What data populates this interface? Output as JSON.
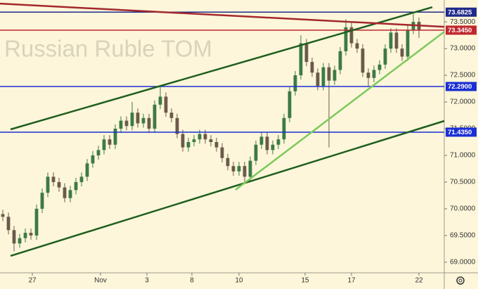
{
  "chart_data": {
    "type": "candlestick",
    "subtitle": "Russian Ruble TOM",
    "x": [
      0,
      1,
      2,
      3,
      4,
      5,
      6,
      7,
      8,
      9,
      10,
      11,
      12,
      13,
      14,
      15,
      16,
      17,
      18,
      19,
      20,
      21,
      22,
      23,
      24,
      25,
      26,
      27,
      28,
      29,
      30,
      31,
      32,
      33,
      34,
      35,
      36,
      37,
      38,
      39,
      40,
      41,
      42,
      43,
      44,
      45,
      46,
      47,
      48,
      49,
      50,
      51,
      52,
      53,
      54,
      55,
      56,
      57,
      58,
      59,
      60,
      61,
      62,
      63,
      64,
      65,
      66,
      67,
      68,
      69,
      70,
      71,
      72,
      73,
      74
    ],
    "open": [
      69.9,
      69.85,
      69.6,
      69.35,
      69.45,
      69.55,
      69.5,
      70.0,
      70.3,
      70.6,
      70.5,
      70.4,
      70.2,
      70.35,
      70.5,
      70.6,
      70.85,
      71.0,
      71.1,
      71.3,
      71.2,
      71.5,
      71.65,
      71.55,
      71.8,
      71.6,
      71.7,
      71.5,
      71.95,
      72.1,
      71.8,
      71.7,
      71.4,
      71.15,
      71.25,
      71.3,
      71.4,
      71.3,
      71.25,
      71.15,
      70.95,
      70.8,
      70.7,
      70.8,
      70.6,
      70.9,
      71.2,
      71.35,
      71.1,
      71.2,
      71.3,
      71.7,
      72.2,
      72.5,
      73.1,
      72.75,
      72.55,
      72.3,
      72.65,
      72.4,
      72.6,
      72.95,
      73.4,
      73.1,
      73.0,
      72.55,
      72.45,
      72.6,
      72.7,
      73.0,
      73.3,
      73.0,
      72.85,
      73.35,
      73.5
    ],
    "high": [
      69.98,
      69.93,
      69.68,
      69.53,
      69.63,
      69.63,
      70.08,
      70.38,
      70.68,
      70.68,
      70.58,
      70.48,
      70.43,
      70.58,
      70.68,
      70.93,
      71.08,
      71.18,
      71.38,
      71.38,
      71.58,
      71.73,
      71.73,
      72.0,
      71.88,
      71.78,
      71.78,
      72.03,
      72.3,
      72.18,
      71.88,
      71.78,
      71.48,
      71.33,
      71.38,
      71.48,
      71.48,
      71.38,
      71.33,
      71.23,
      71.03,
      70.88,
      70.88,
      70.88,
      70.98,
      71.28,
      71.43,
      71.43,
      71.28,
      71.38,
      71.78,
      72.28,
      72.58,
      73.25,
      73.18,
      72.83,
      72.63,
      72.73,
      72.73,
      72.68,
      73.03,
      73.55,
      73.48,
      73.18,
      73.08,
      72.63,
      72.68,
      72.78,
      73.08,
      73.38,
      73.38,
      73.08,
      73.43,
      73.65,
      73.58
    ],
    "low": [
      69.77,
      69.52,
      69.2,
      69.27,
      69.37,
      69.42,
      69.42,
      69.92,
      70.22,
      70.42,
      70.32,
      70.12,
      70.12,
      70.27,
      70.42,
      70.52,
      70.77,
      70.92,
      71.02,
      71.12,
      71.12,
      71.42,
      71.47,
      71.47,
      71.52,
      71.52,
      71.42,
      71.42,
      71.87,
      71.72,
      71.62,
      71.32,
      71.07,
      71.07,
      71.17,
      71.22,
      71.22,
      71.17,
      71.07,
      70.87,
      70.72,
      70.62,
      70.62,
      70.5,
      70.52,
      70.82,
      71.12,
      71.02,
      71.02,
      71.12,
      71.22,
      71.62,
      72.12,
      72.42,
      72.67,
      72.47,
      72.22,
      72.22,
      71.15,
      72.32,
      72.52,
      72.87,
      73.02,
      72.92,
      72.47,
      72.3,
      72.37,
      72.52,
      72.62,
      72.92,
      72.92,
      72.77,
      72.77,
      73.27,
      73.2
    ],
    "close": [
      69.85,
      69.6,
      69.35,
      69.45,
      69.55,
      69.5,
      70.0,
      70.3,
      70.6,
      70.5,
      70.4,
      70.2,
      70.35,
      70.5,
      70.6,
      70.85,
      71.0,
      71.1,
      71.3,
      71.2,
      71.5,
      71.65,
      71.55,
      71.8,
      71.6,
      71.7,
      71.5,
      71.95,
      72.1,
      71.8,
      71.7,
      71.4,
      71.15,
      71.25,
      71.3,
      71.4,
      71.3,
      71.25,
      71.15,
      70.95,
      70.8,
      70.7,
      70.8,
      70.6,
      70.9,
      71.2,
      71.35,
      71.1,
      71.2,
      71.3,
      71.7,
      72.2,
      72.5,
      73.1,
      72.75,
      72.55,
      72.3,
      72.65,
      72.4,
      72.6,
      72.95,
      73.4,
      73.1,
      73.0,
      72.55,
      72.45,
      72.6,
      72.7,
      73.0,
      73.3,
      73.0,
      72.85,
      73.35,
      73.5,
      73.345
    ],
    "up_color": "#3d7a46",
    "down_color": "#6b5a4a",
    "xlim": [
      -0.5,
      78.5
    ],
    "ylim": [
      68.84,
      73.91
    ],
    "xticks": [
      {
        "value": 5.25,
        "label": "27"
      },
      {
        "value": 17.375,
        "label": "Nov"
      },
      {
        "value": 25.625,
        "label": "3"
      },
      {
        "value": 33.625,
        "label": "8"
      },
      {
        "value": 42,
        "label": "10"
      },
      {
        "value": 53.75,
        "label": "15"
      },
      {
        "value": 62,
        "label": "17"
      },
      {
        "value": 74,
        "label": "22"
      }
    ],
    "yticks": [
      {
        "value": 69,
        "label": "69.0000"
      },
      {
        "value": 69.5,
        "label": "69.5000"
      },
      {
        "value": 70,
        "label": "70.0000"
      },
      {
        "value": 70.5,
        "label": "70.5000"
      },
      {
        "value": 71,
        "label": "71.0000"
      },
      {
        "value": 71.5,
        "label": "71.5000"
      },
      {
        "value": 72,
        "label": "72.0000"
      },
      {
        "value": 72.5,
        "label": "72.5000"
      },
      {
        "value": 73,
        "label": "73.0000"
      },
      {
        "value": 73.5,
        "label": "73.5000"
      }
    ],
    "grid": false,
    "levels": [
      {
        "value": 73.6825,
        "label": "73.6825",
        "color": "#1f2a8a"
      },
      {
        "value": 72.29,
        "label": "72.2900",
        "color": "#1a2fd6"
      },
      {
        "value": 71.435,
        "label": "71.4350",
        "color": "#1a2fd6"
      },
      {
        "value": 73.345,
        "label": "73.3450",
        "color": "#c0272d"
      }
    ],
    "lines": [
      {
        "color": "#1f5e1f",
        "x": [
          1.375,
          76.375
        ],
        "y": [
          71.487,
          73.776
        ]
      },
      {
        "color": "#1f5e1f",
        "x": [
          1.375,
          78.5
        ],
        "y": [
          69.118,
          71.645
        ]
      },
      {
        "color": "#7cc95e",
        "x": [
          41.375,
          78.5
        ],
        "y": [
          70.355,
          73.316
        ]
      },
      {
        "color": "#a3282c",
        "x": [
          -0.5,
          78.5
        ],
        "y": [
          73.842,
          73.408
        ]
      }
    ]
  }
}
